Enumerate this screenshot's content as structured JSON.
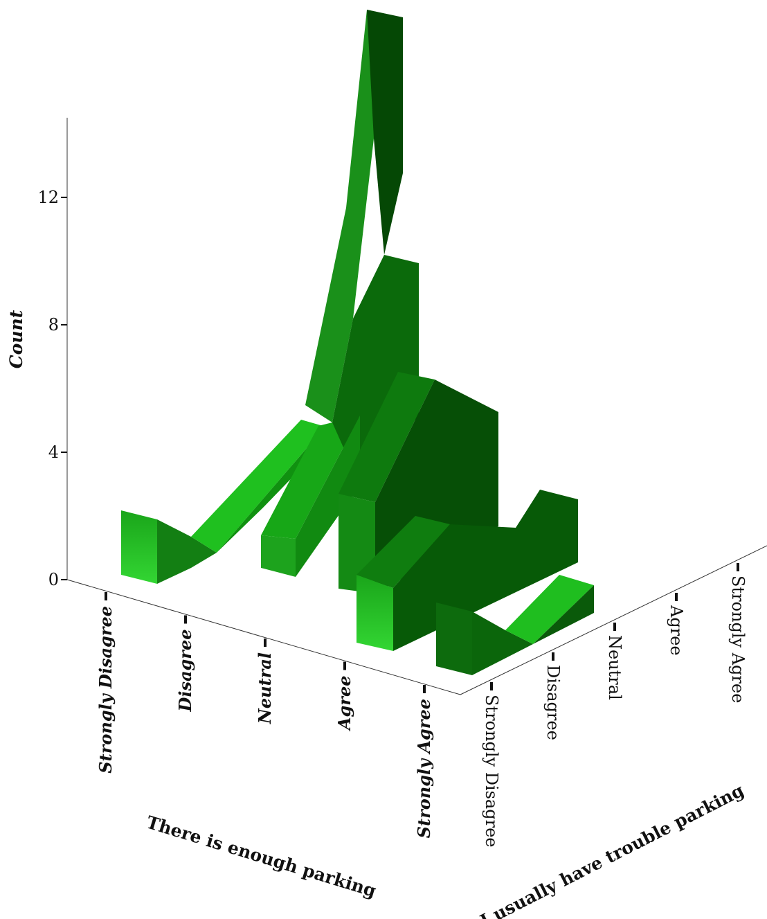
{
  "chart_data": {
    "type": "3d-ribbon",
    "ylabel": "Count",
    "y_ticks": [
      "0",
      "4",
      "8",
      "12"
    ],
    "ylim": [
      0,
      16
    ],
    "x_axis": {
      "title": "There is enough parking",
      "categories": [
        "Strongly Disagree",
        "Disagree",
        "Neutral",
        "Agree",
        "Strongly Agree"
      ]
    },
    "z_axis": {
      "title": "I usually have trouble parking",
      "categories": [
        "Strongly Disagree",
        "Disagree",
        "Neutral",
        "Agree",
        "Strongly Agree"
      ]
    },
    "series": [
      {
        "z_category": "Strongly Disagree",
        "values": [
          0,
          0,
          0,
          0,
          0
        ]
      },
      {
        "z_category": "Disagree",
        "values": [
          0,
          0,
          0,
          0,
          0
        ]
      },
      {
        "z_category": "Neutral",
        "values": [
          0,
          0,
          0,
          0,
          0
        ]
      },
      {
        "z_category": "Agree",
        "values": [
          2,
          0,
          4,
          14,
          10
        ]
      },
      {
        "z_category": "Strongly Agree",
        "values": [
          0,
          0,
          0,
          0,
          0
        ]
      }
    ],
    "colors": {
      "light": "#22c922",
      "mid": "#128812",
      "dark": "#064c06"
    }
  }
}
